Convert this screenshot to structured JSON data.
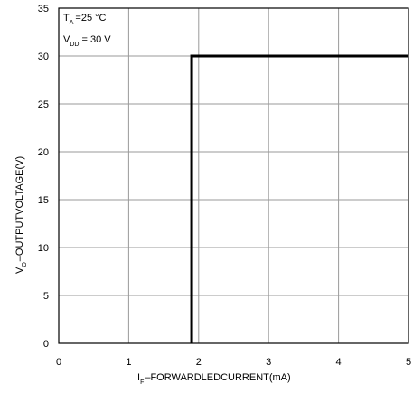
{
  "chart_data": {
    "type": "line",
    "title": "",
    "xlabel": {
      "symbol": "I",
      "subscript": "F",
      "text": "–FORWARDLEDCURRENT(mA)"
    },
    "ylabel": {
      "symbol": "V",
      "subscript": "O",
      "text": "–OUTPUTVOLTAGE(V)"
    },
    "xlim": [
      0,
      5
    ],
    "ylim": [
      0,
      35
    ],
    "xticks": [
      0,
      1,
      2,
      3,
      4,
      5
    ],
    "yticks": [
      0,
      5,
      10,
      15,
      20,
      25,
      30,
      35
    ],
    "grid": true,
    "series": [
      {
        "x": [
          1.9,
          1.9,
          5
        ],
        "y": [
          0,
          30,
          30
        ]
      }
    ],
    "annotations": [
      {
        "symbol": "T",
        "subscript": "A",
        "text": "=25 °C"
      },
      {
        "symbol": "V",
        "subscript": "DD",
        "text": "= 30 V"
      }
    ]
  }
}
